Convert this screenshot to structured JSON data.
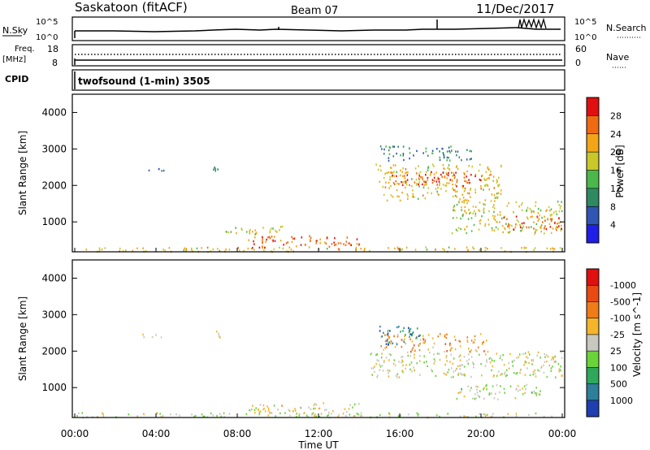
{
  "header": {
    "station": "Saskatoon (fitACF)",
    "beam": "Beam 07",
    "date": "11/Dec/2017"
  },
  "strips": {
    "nsky_label": "N.Sky",
    "nsearch_label": "N.Search",
    "noise_ticks_left": [
      "10^5",
      "10^0"
    ],
    "noise_ticks_right": [
      "10^5",
      "10^0"
    ],
    "freq_label": "Freq.",
    "freq_unit": "[MHz]",
    "freq_ticks": [
      "18",
      "8"
    ],
    "nave_label": "Nave",
    "nave_ticks": [
      "60",
      "0"
    ],
    "cpid_label": "CPID",
    "cpid_text": "twofsound (1-min) 3505"
  },
  "axes": {
    "ylabel": "Slant Range [km]",
    "xlabel": "Time UT",
    "y_ticks": [
      "1000",
      "2000",
      "3000",
      "4000"
    ],
    "x_ticks": [
      "00:00",
      "04:00",
      "08:00",
      "12:00",
      "16:00",
      "20:00",
      "00:00"
    ]
  },
  "colorbars": {
    "power": {
      "title": "Power [dB]",
      "labels": [
        "4",
        "8",
        "12",
        "16",
        "20",
        "24",
        "28"
      ],
      "colors": [
        "#1f1fe6",
        "#2f56b3",
        "#2f8a62",
        "#4cb84c",
        "#c9c72a",
        "#f2a516",
        "#f06a12",
        "#e01010"
      ]
    },
    "velocity": {
      "title": "Velocity [m s^-1]",
      "labels": [
        "1000",
        "500",
        "100",
        "25",
        "-25",
        "-100",
        "-500",
        "-1000"
      ],
      "colors": [
        "#1f3fb0",
        "#2d7f9a",
        "#2ea85a",
        "#6bd33a",
        "#c8c8c0",
        "#f5b52a",
        "#f07c18",
        "#e84a12",
        "#e01010"
      ]
    }
  },
  "chart_data": [
    {
      "type": "heatmap",
      "title": "Power [dB]",
      "x_range": [
        "00:00",
        "24:00"
      ],
      "y_range_km": [
        180,
        4500
      ],
      "colorscale": [
        0,
        32
      ],
      "regions": [
        {
          "t0": 0.0,
          "t1": 24.0,
          "r0": 200,
          "r1": 330,
          "value_db": 20
        },
        {
          "t0": 8.5,
          "t1": 14.0,
          "r0": 300,
          "r1": 650,
          "value_db": 26
        },
        {
          "t0": 7.0,
          "t1": 10.5,
          "r0": 680,
          "r1": 900,
          "value_db": 18
        },
        {
          "t0": 3.2,
          "t1": 4.5,
          "r0": 2380,
          "r1": 2480,
          "value_db": 6
        },
        {
          "t0": 6.7,
          "t1": 7.3,
          "r0": 2380,
          "r1": 2600,
          "value_db": 8
        },
        {
          "t0": 14.8,
          "t1": 21.0,
          "r0": 1600,
          "r1": 2600,
          "value_db": 20
        },
        {
          "t0": 15.5,
          "t1": 20.0,
          "r0": 2000,
          "r1": 2400,
          "value_db": 28
        },
        {
          "t0": 15.0,
          "t1": 19.5,
          "r0": 2700,
          "r1": 3100,
          "value_db": 10
        },
        {
          "t0": 18.5,
          "t1": 24.0,
          "r0": 700,
          "r1": 1600,
          "value_db": 18
        },
        {
          "t0": 21.0,
          "t1": 24.0,
          "r0": 800,
          "r1": 1200,
          "value_db": 26
        }
      ]
    },
    {
      "type": "heatmap",
      "title": "Velocity [m s^-1]",
      "x_range": [
        "00:00",
        "24:00"
      ],
      "y_range_km": [
        180,
        4500
      ],
      "colorscale": [
        -1000,
        1000
      ],
      "regions": [
        {
          "t0": 0.0,
          "t1": 24.0,
          "r0": 200,
          "r1": 330,
          "value_ms": 60
        },
        {
          "t0": 8.5,
          "t1": 14.0,
          "r0": 300,
          "r1": 600,
          "value_ms": -80
        },
        {
          "t0": 15.0,
          "t1": 20.5,
          "r0": 2000,
          "r1": 2500,
          "value_ms": -300
        },
        {
          "t0": 14.8,
          "t1": 17.0,
          "r0": 2200,
          "r1": 2700,
          "value_ms": 600
        },
        {
          "t0": 14.5,
          "t1": 24.0,
          "r0": 1300,
          "r1": 2000,
          "value_ms": 0
        },
        {
          "t0": 18.5,
          "t1": 23.0,
          "r0": 700,
          "r1": 1100,
          "value_ms": 80
        },
        {
          "t0": 3.2,
          "t1": 4.5,
          "r0": 2380,
          "r1": 2480,
          "value_ms": 0
        },
        {
          "t0": 6.7,
          "t1": 7.3,
          "r0": 2380,
          "r1": 2600,
          "value_ms": 0
        }
      ]
    }
  ]
}
